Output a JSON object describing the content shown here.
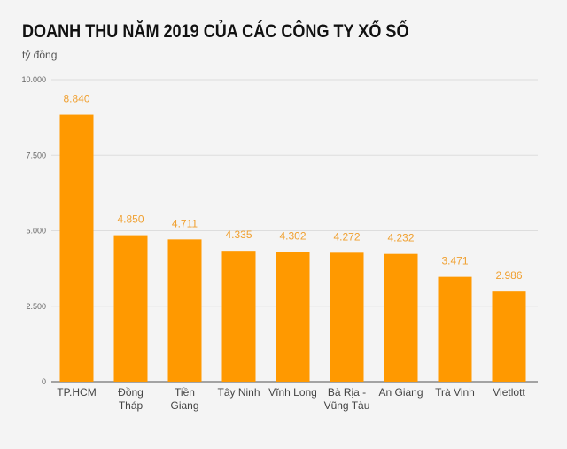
{
  "chart_data": {
    "type": "bar",
    "title": "DOANH THU NĂM 2019 CỦA CÁC CÔNG TY XỔ SỐ",
    "ylabel": "tỷ đồng",
    "categories": [
      [
        "TP.HCM"
      ],
      [
        "Đồng",
        "Tháp"
      ],
      [
        "Tiền",
        "Giang"
      ],
      [
        "Tây Ninh"
      ],
      [
        "Vĩnh Long"
      ],
      [
        "Bà Rịa -",
        "Vũng Tàu"
      ],
      [
        "An Giang"
      ],
      [
        "Trà Vinh"
      ],
      [
        "Vietlott"
      ]
    ],
    "values": [
      8840,
      4850,
      4711,
      4335,
      4302,
      4272,
      4232,
      3471,
      2986
    ],
    "data_labels": [
      "8.840",
      "4.850",
      "4.711",
      "4.335",
      "4.302",
      "4.272",
      "4.232",
      "3.471",
      "2.986"
    ],
    "yticks": [
      0,
      2500,
      5000,
      7500,
      10000
    ],
    "ytick_labels": [
      "0",
      "2.500",
      "5.000",
      "7.500",
      "10.000"
    ],
    "ylim": [
      0,
      10000
    ],
    "grid": true,
    "bar_color": "#ff9900",
    "label_color": "#f0a030"
  }
}
